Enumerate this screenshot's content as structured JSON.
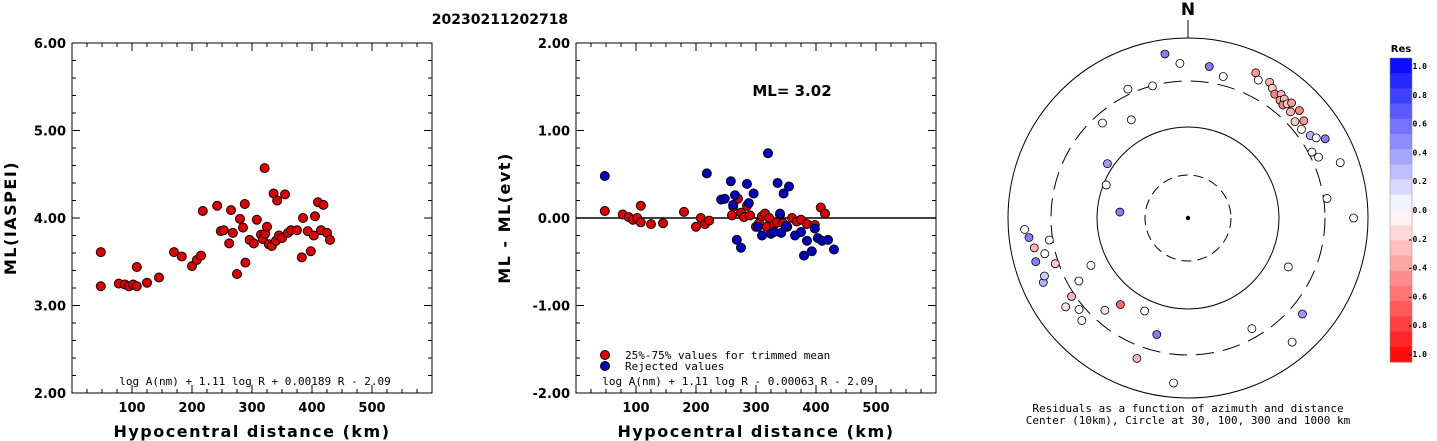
{
  "title": "20230211202718",
  "chart_data": [
    {
      "type": "scatter",
      "name": "left",
      "ylabel": "ML(IASPEI)",
      "xlabel": "Hypocentral distance (km)",
      "xlim": [
        0,
        600
      ],
      "ylim": [
        2.0,
        6.0
      ],
      "xticks": [
        "100",
        "200",
        "300",
        "400",
        "500"
      ],
      "yticks": [
        "2.00",
        "3.00",
        "4.00",
        "5.00",
        "6.00"
      ],
      "formula": "log A(nm) + 1.11 log R + 0.00189 R - 2.09",
      "marker_color": "#e00000",
      "points": [
        [
          48,
          3.61
        ],
        [
          48,
          3.22
        ],
        [
          78,
          3.25
        ],
        [
          88,
          3.24
        ],
        [
          95,
          3.22
        ],
        [
          102,
          3.24
        ],
        [
          108,
          3.22
        ],
        [
          108,
          3.44
        ],
        [
          125,
          3.26
        ],
        [
          145,
          3.32
        ],
        [
          170,
          3.61
        ],
        [
          183,
          3.56
        ],
        [
          200,
          3.45
        ],
        [
          208,
          3.52
        ],
        [
          215,
          3.57
        ],
        [
          218,
          4.08
        ],
        [
          242,
          4.14
        ],
        [
          248,
          3.85
        ],
        [
          253,
          3.86
        ],
        [
          262,
          3.71
        ],
        [
          265,
          4.09
        ],
        [
          268,
          3.83
        ],
        [
          275,
          3.36
        ],
        [
          280,
          3.99
        ],
        [
          285,
          3.89
        ],
        [
          288,
          4.16
        ],
        [
          289,
          3.49
        ],
        [
          296,
          3.75
        ],
        [
          303,
          3.71
        ],
        [
          308,
          3.98
        ],
        [
          315,
          3.81
        ],
        [
          318,
          3.76
        ],
        [
          321,
          4.57
        ],
        [
          322,
          3.82
        ],
        [
          325,
          3.9
        ],
        [
          328,
          3.7
        ],
        [
          333,
          3.68
        ],
        [
          336,
          4.28
        ],
        [
          340,
          3.74
        ],
        [
          342,
          4.2
        ],
        [
          345,
          3.8
        ],
        [
          350,
          3.77
        ],
        [
          355,
          4.27
        ],
        [
          360,
          3.83
        ],
        [
          365,
          3.86
        ],
        [
          375,
          3.86
        ],
        [
          383,
          3.55
        ],
        [
          385,
          4.0
        ],
        [
          393,
          3.85
        ],
        [
          398,
          3.62
        ],
        [
          403,
          3.8
        ],
        [
          405,
          4.02
        ],
        [
          410,
          4.18
        ],
        [
          415,
          3.86
        ],
        [
          419,
          4.15
        ],
        [
          425,
          3.83
        ],
        [
          430,
          3.75
        ]
      ]
    },
    {
      "type": "scatter",
      "name": "middle",
      "ylabel": "ML - ML(evt)",
      "xlabel": "Hypocentral distance (km)",
      "xlim": [
        0,
        600
      ],
      "ylim": [
        -2.0,
        2.0
      ],
      "xticks": [
        "100",
        "200",
        "300",
        "400",
        "500"
      ],
      "yticks": [
        "-2.00",
        "-1.00",
        "0.00",
        "1.00",
        "2.00"
      ],
      "formula": "log A(nm) + 1.11 log R - 0.00063 R - 2.09",
      "ml_label": "ML= 3.02",
      "legend": [
        {
          "label": "25%-75% values for trimmed mean",
          "color": "#e00000"
        },
        {
          "label": "Rejected values",
          "color": "#0000c0"
        }
      ],
      "series": [
        {
          "color": "#e00000",
          "points": [
            [
              48,
              0.08
            ],
            [
              78,
              0.04
            ],
            [
              88,
              0.01
            ],
            [
              95,
              -0.02
            ],
            [
              102,
              0.0
            ],
            [
              108,
              0.14
            ],
            [
              108,
              -0.05
            ],
            [
              125,
              -0.07
            ],
            [
              145,
              -0.06
            ],
            [
              180,
              0.07
            ],
            [
              200,
              -0.1
            ],
            [
              208,
              0.0
            ],
            [
              215,
              -0.07
            ],
            [
              222,
              -0.03
            ],
            [
              260,
              0.03
            ],
            [
              262,
              0.13
            ],
            [
              270,
              0.22
            ],
            [
              275,
              0.06
            ],
            [
              280,
              0.01
            ],
            [
              285,
              0.14
            ],
            [
              290,
              0.03
            ],
            [
              300,
              -0.1
            ],
            [
              305,
              -0.06
            ],
            [
              310,
              0.02
            ],
            [
              315,
              0.05
            ],
            [
              318,
              -0.1
            ],
            [
              322,
              0.0
            ],
            [
              330,
              -0.08
            ],
            [
              335,
              -0.05
            ],
            [
              340,
              0.04
            ],
            [
              345,
              -0.06
            ],
            [
              352,
              -0.1
            ],
            [
              360,
              0.0
            ],
            [
              368,
              -0.04
            ],
            [
              375,
              -0.02
            ],
            [
              385,
              -0.07
            ],
            [
              398,
              -0.08
            ],
            [
              408,
              0.12
            ],
            [
              415,
              0.05
            ]
          ]
        },
        {
          "color": "#0000c0",
          "points": [
            [
              48,
              0.48
            ],
            [
              218,
              0.51
            ],
            [
              242,
              0.21
            ],
            [
              248,
              0.22
            ],
            [
              258,
              0.42
            ],
            [
              262,
              0.15
            ],
            [
              265,
              0.26
            ],
            [
              268,
              -0.25
            ],
            [
              275,
              -0.34
            ],
            [
              285,
              0.39
            ],
            [
              288,
              0.17
            ],
            [
              296,
              0.28
            ],
            [
              303,
              -0.1
            ],
            [
              310,
              -0.2
            ],
            [
              320,
              0.74
            ],
            [
              325,
              -0.18
            ],
            [
              330,
              -0.16
            ],
            [
              336,
              0.4
            ],
            [
              340,
              0.05
            ],
            [
              342,
              -0.17
            ],
            [
              346,
              0.28
            ],
            [
              350,
              -0.09
            ],
            [
              355,
              0.36
            ],
            [
              365,
              -0.2
            ],
            [
              375,
              -0.16
            ],
            [
              380,
              -0.43
            ],
            [
              385,
              -0.26
            ],
            [
              393,
              -0.38
            ],
            [
              398,
              -0.12
            ],
            [
              403,
              -0.23
            ],
            [
              410,
              -0.26
            ],
            [
              420,
              -0.25
            ],
            [
              430,
              -0.36
            ]
          ]
        }
      ]
    },
    {
      "type": "polar-scatter",
      "name": "residuals",
      "north_label": "N",
      "caption_line1": "Residuals as a function of azimuth and distance",
      "caption_line2": "Center (10km), Circle at 30, 100, 300 and 1000 km",
      "colorbar_title": "Res",
      "colorbar_ticks": [
        "1.0",
        "0.8",
        "0.6",
        "0.4",
        "0.2",
        "0.0",
        "-0.2",
        "-0.4",
        "-0.6",
        "-0.8",
        "-1.0"
      ],
      "points": [
        [
          8,
          0.85,
          0.5
        ],
        [
          14,
          0.81,
          0.0
        ],
        [
          25,
          0.89,
          -0.4
        ],
        [
          27,
          0.86,
          0.0
        ],
        [
          31,
          0.88,
          -0.3
        ],
        [
          33,
          0.86,
          -0.2
        ],
        [
          35,
          0.84,
          -0.5
        ],
        [
          37,
          0.86,
          -0.3
        ],
        [
          38,
          0.83,
          -0.4
        ],
        [
          39,
          0.85,
          -0.3
        ],
        [
          40,
          0.82,
          -0.5
        ],
        [
          41,
          0.84,
          -0.2
        ],
        [
          42,
          0.86,
          -0.4
        ],
        [
          44,
          0.82,
          -0.3
        ],
        [
          46,
          0.86,
          -0.5
        ],
        [
          48,
          0.8,
          -0.2
        ],
        [
          50,
          0.84,
          -0.4
        ],
        [
          52,
          0.8,
          0.0
        ],
        [
          56,
          0.82,
          0.3
        ],
        [
          58,
          0.84,
          0.0
        ],
        [
          62,
          0.78,
          0.0
        ],
        [
          70,
          0.9,
          0.0
        ],
        [
          82,
          0.78,
          0.0
        ],
        [
          90,
          0.92,
          0.0
        ],
        [
          116,
          0.62,
          0.0
        ],
        [
          130,
          0.83,
          0.4
        ],
        [
          140,
          0.9,
          0.0
        ],
        [
          150,
          0.71,
          0.0
        ],
        [
          185,
          0.92,
          0.0
        ],
        [
          195,
          0.67,
          0.5
        ],
        [
          200,
          0.83,
          -0.3
        ],
        [
          205,
          0.57,
          0.0
        ],
        [
          218,
          0.61,
          -0.6
        ],
        [
          222,
          0.69,
          -0.1
        ],
        [
          226,
          0.82,
          0.0
        ],
        [
          230,
          0.79,
          0.0
        ],
        [
          234,
          0.84,
          -0.1
        ],
        [
          236,
          0.78,
          -0.3
        ],
        [
          240,
          0.7,
          0.0
        ],
        [
          244,
          0.6,
          0.0
        ],
        [
          246,
          0.88,
          0.3
        ],
        [
          248,
          0.86,
          0.2
        ],
        [
          251,
          0.78,
          -0.2
        ],
        [
          254,
          0.88,
          0.5
        ],
        [
          256,
          0.82,
          0.0
        ],
        [
          259,
          0.87,
          -0.3
        ],
        [
          261,
          0.78,
          0.0
        ],
        [
          263,
          0.89,
          0.5
        ],
        [
          266,
          0.91,
          0.0
        ],
        [
          275,
          0.38,
          0.5
        ],
        [
          292,
          0.49,
          0.0
        ],
        [
          304,
          0.54,
          0.4
        ],
        [
          318,
          0.71,
          0.0
        ],
        [
          330,
          0.63,
          0.0
        ],
        [
          335,
          0.79,
          0.0
        ],
        [
          352,
          0.92,
          0.5
        ],
        [
          357,
          0.86,
          0.0
        ],
        [
          60,
          0.88,
          0.5
        ],
        [
          65,
          0.8,
          0.0
        ],
        [
          345,
          0.76,
          0.0
        ]
      ]
    }
  ]
}
